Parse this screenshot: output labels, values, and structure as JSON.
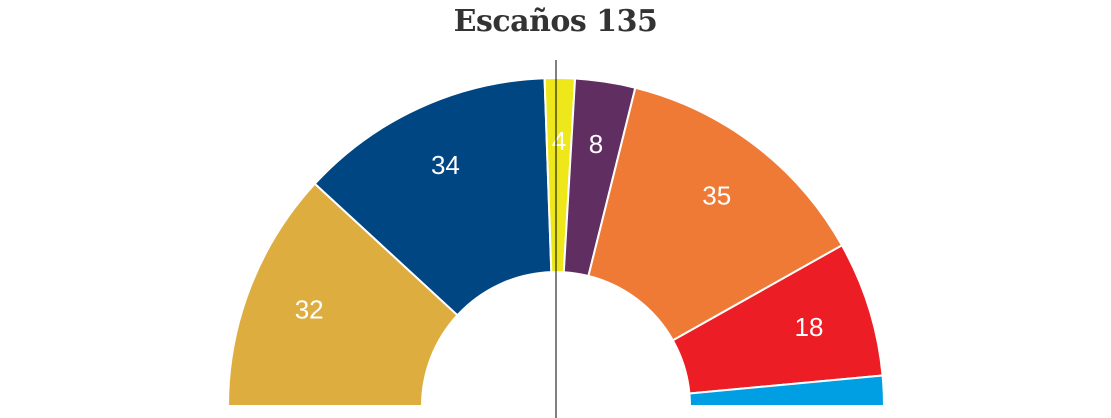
{
  "chart_data": {
    "type": "pie",
    "subtype": "half-donut",
    "title": "Escaños 135",
    "total": 135,
    "slices": [
      {
        "label": "32",
        "value": 32,
        "color": "#DDAD40"
      },
      {
        "label": "34",
        "value": 34,
        "color": "#004683"
      },
      {
        "label": "4",
        "value": 4,
        "color": "#EEE81A"
      },
      {
        "label": "8",
        "value": 8,
        "color": "#602E61"
      },
      {
        "label": "35",
        "value": 35,
        "color": "#EE7A36"
      },
      {
        "label": "18",
        "value": 18,
        "color": "#EC1D24"
      },
      {
        "label": "",
        "value": 4,
        "color": "#009FE3"
      }
    ],
    "majority_line": true,
    "legend": "none"
  }
}
